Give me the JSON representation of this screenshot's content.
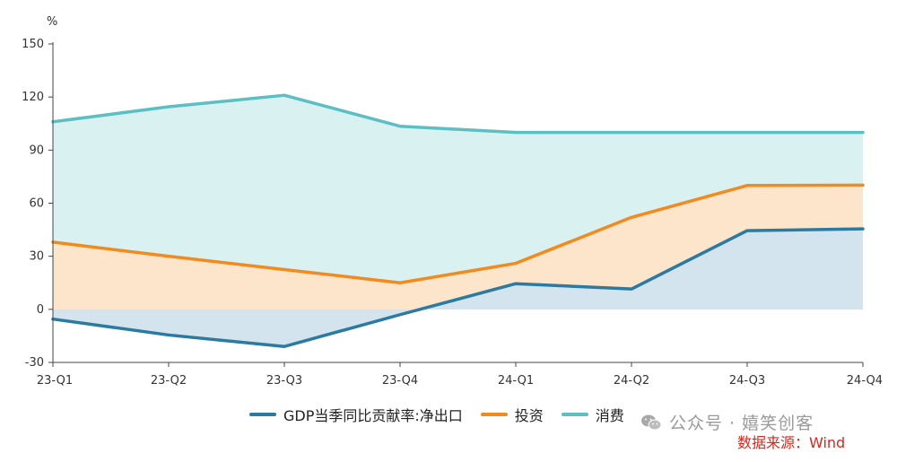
{
  "chart_data": {
    "type": "area",
    "unit": "%",
    "categories": [
      "23-Q1",
      "23-Q2",
      "23-Q3",
      "23-Q4",
      "24-Q1",
      "24-Q2",
      "24-Q3",
      "24-Q4"
    ],
    "series": [
      {
        "name": "GDP当季同比贡献率:净出口",
        "color": "#2b7aa1",
        "fill": "#d3e4ee",
        "values": [
          -5.5,
          -14.5,
          -21,
          -3,
          14.5,
          11.5,
          44.5,
          45.5
        ]
      },
      {
        "name": "投资",
        "color": "#f28a1e",
        "fill": "#fde5cc",
        "values": [
          38,
          30,
          22.5,
          15,
          26,
          52,
          70,
          70.2
        ]
      },
      {
        "name": "消费",
        "color": "#5bbfc3",
        "fill": "#daf1f1",
        "values": [
          106,
          114.5,
          121,
          103.5,
          100,
          100,
          100,
          100
        ]
      }
    ],
    "ylim": [
      -30,
      150
    ],
    "yticks": [
      -30,
      0,
      30,
      60,
      90,
      120,
      150
    ],
    "legend_position": "bottom"
  },
  "watermark": "公众号 · 嬉笑创客",
  "source": "数据来源：Wind"
}
